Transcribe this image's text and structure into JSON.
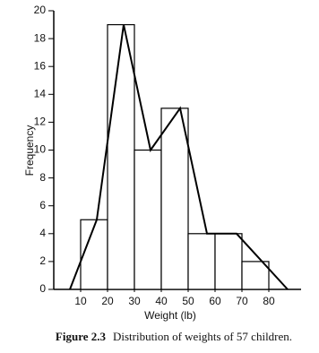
{
  "chart_data": {
    "type": "histogram",
    "x_label": "Weight (lb)",
    "y_label": "Frequency",
    "caption_label": "Figure 2.3",
    "caption_text": "Distribution of weights of 57 children.",
    "bins": [
      10,
      20,
      30,
      40,
      50,
      60,
      70,
      80
    ],
    "values": [
      5,
      19,
      10,
      13,
      4,
      4,
      2
    ],
    "color": "#ffffff",
    "polygon": {
      "x": [
        6,
        16,
        26,
        36,
        47,
        57,
        68,
        87
      ],
      "values": [
        0,
        5,
        19,
        10,
        13,
        4,
        4,
        0
      ]
    },
    "xlim": [
      0,
      92
    ],
    "ylim": [
      0,
      20
    ],
    "xticks": [
      10,
      20,
      30,
      40,
      50,
      60,
      70,
      80
    ],
    "yticks": [
      0,
      2,
      4,
      6,
      8,
      10,
      12,
      14,
      16,
      18,
      20
    ]
  }
}
